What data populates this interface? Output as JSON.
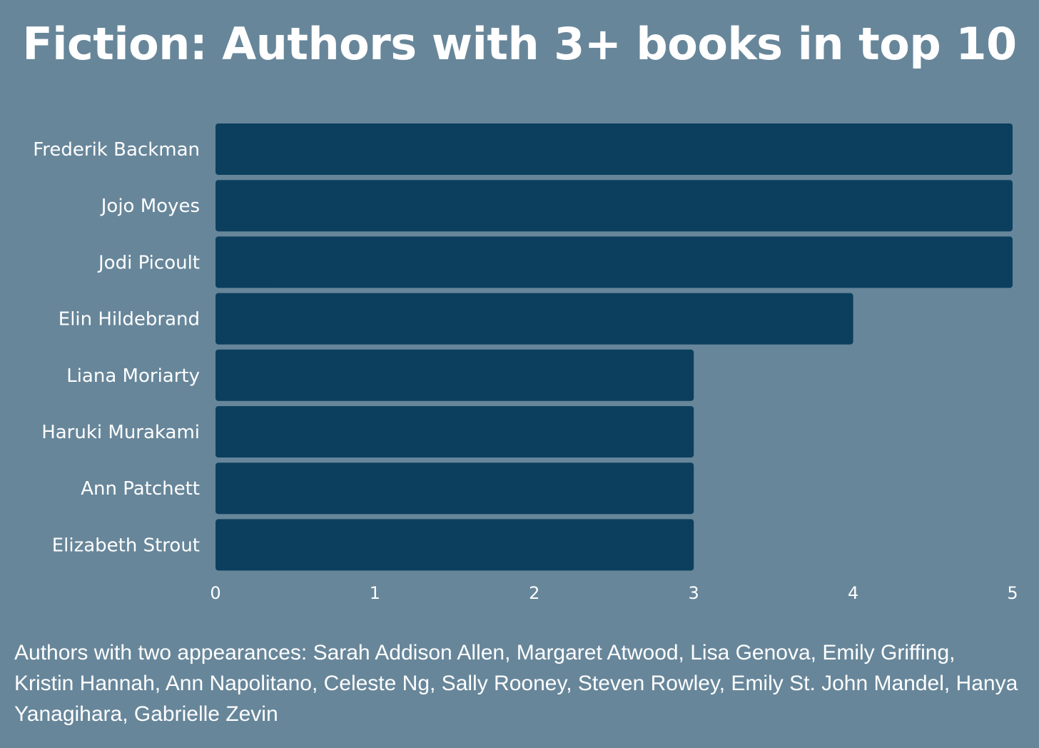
{
  "chart_data": {
    "type": "bar",
    "orientation": "horizontal",
    "title": "Fiction: Authors with 3+ books in top 10",
    "categories": [
      "Frederik Backman",
      "Jojo Moyes",
      "Jodi Picoult",
      "Elin Hildebrand",
      "Liana Moriarty",
      "Haruki Murakami",
      "Ann Patchett",
      "Elizabeth Strout"
    ],
    "values": [
      5,
      5,
      5,
      4,
      3,
      3,
      3,
      3
    ],
    "xlim": [
      0,
      5
    ],
    "xticks": [
      "0",
      "1",
      "2",
      "3",
      "4",
      "5"
    ],
    "xlabel": "",
    "ylabel": "",
    "grid": false,
    "colors": {
      "background": "#67869a",
      "bar": "#0c3f5e",
      "text": "#ffffff"
    }
  },
  "footnote": "Authors with two appearances: Sarah Addison Allen, Margaret Atwood, Lisa Genova, Emily Griffing, Kristin Hannah, Ann Napolitano, Celeste Ng, Sally Rooney, Steven Rowley, Emily St. John Mandel, Hanya Yanagihara, Gabrielle Zevin"
}
